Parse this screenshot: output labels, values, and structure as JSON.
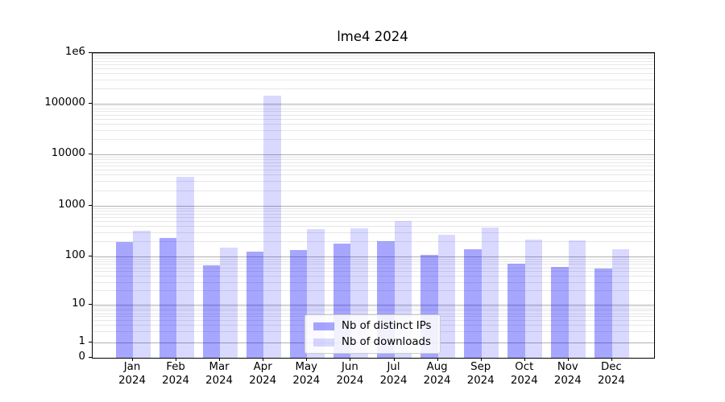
{
  "chart_data": {
    "type": "bar",
    "title": "lme4 2024",
    "categories": [
      "Jan",
      "Feb",
      "Mar",
      "Apr",
      "May",
      "Jun",
      "Jul",
      "Aug",
      "Sep",
      "Oct",
      "Nov",
      "Dec"
    ],
    "category_year": "2024",
    "series": [
      {
        "name": "Nb of distinct IPs",
        "color": "rgba(0,0,255,0.35)",
        "values": [
          195,
          233,
          67,
          127,
          136,
          183,
          203,
          110,
          140,
          70,
          61,
          57
        ]
      },
      {
        "name": "Nb of downloads",
        "color": "rgba(0,0,255,0.15)",
        "values": [
          325,
          3600,
          150,
          141000,
          345,
          355,
          500,
          265,
          370,
          215,
          208,
          140
        ]
      }
    ],
    "y_axis": {
      "scale": "log-like (asinh: decades equal above 10, compressed toward 0, linear 0-1)",
      "ylim": [
        0,
        1000000
      ],
      "ticks": [
        {
          "label": "1e6",
          "value": 1000000
        },
        {
          "label": "100000",
          "value": 100000
        },
        {
          "label": "10000",
          "value": 10000
        },
        {
          "label": "1000",
          "value": 1000
        },
        {
          "label": "100",
          "value": 100
        },
        {
          "label": "10",
          "value": 10
        },
        {
          "label": "1",
          "value": 1
        },
        {
          "label": "0",
          "value": 0
        }
      ],
      "grid_major": true,
      "grid_minor": true
    },
    "legend": {
      "position": "lower center",
      "entries": [
        "Nb of distinct IPs",
        "Nb of downloads"
      ]
    }
  },
  "colors": {
    "major_grid": "#b0b0b0",
    "minor_grid": "#e7e7e7",
    "spine": "#000000",
    "legend_border": "#cccccc",
    "text": "#000000"
  }
}
